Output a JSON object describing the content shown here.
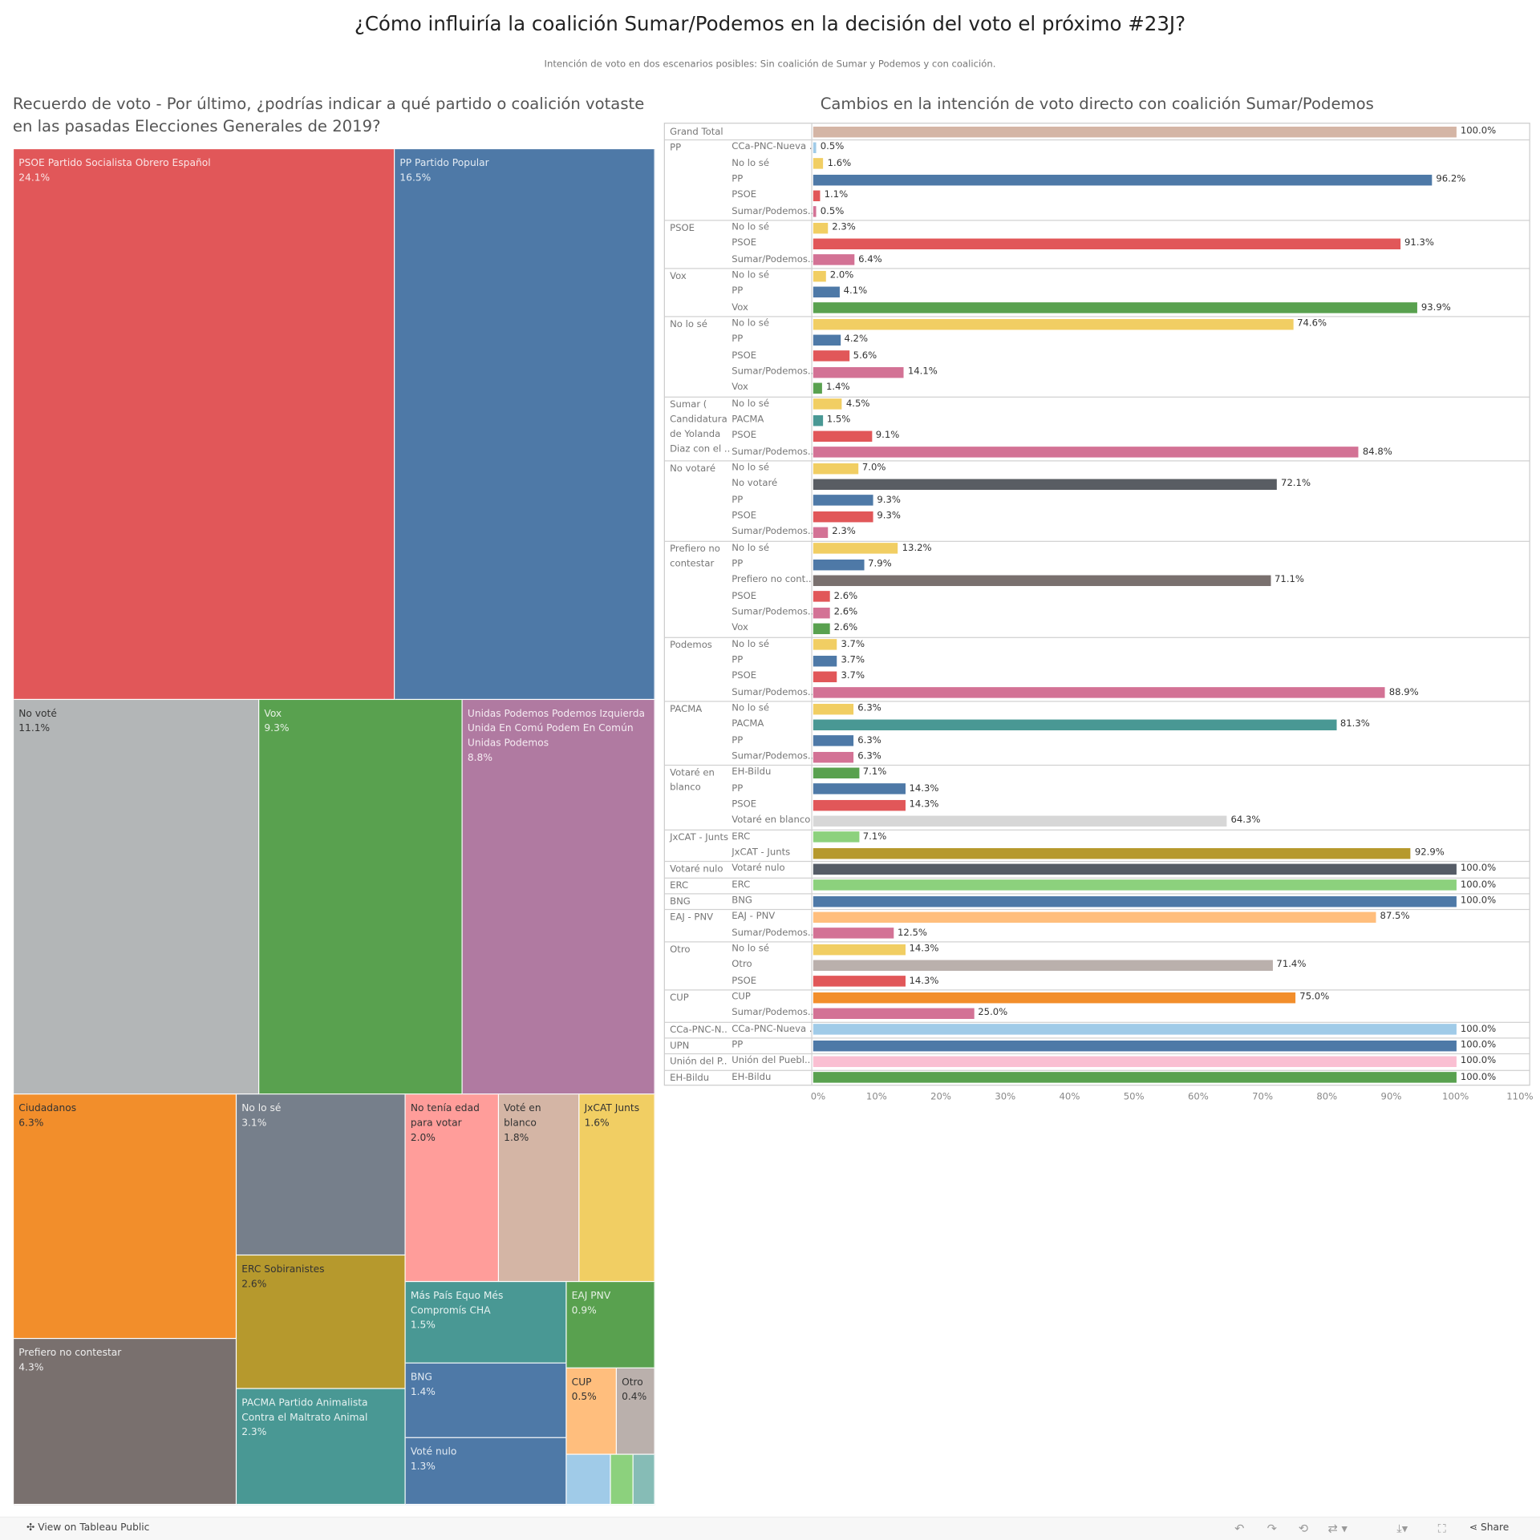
{
  "title": "¿Cómo influiría la coalición Sumar/Podemos en la decisión del voto el próximo #23J?",
  "subtitle": "Intención de voto en dos escenarios posibles: Sin coalición de Sumar y Podemos y con coalición.",
  "left_header": "Recuerdo de voto - Por último, ¿podrías indicar a qué partido o coalición votaste en las pasadas Elecciones Generales de 2019?",
  "right_header": "Cambios en la intención de voto directo con coalición Sumar/Podemos",
  "footer": {
    "view_label": "View on Tableau Public",
    "share_label": "Share",
    "icons": [
      "tableau-logo-icon",
      "undo-icon",
      "redo-icon",
      "revert-icon",
      "refresh-icon",
      "download-icon",
      "fullscreen-icon",
      "share-icon"
    ]
  },
  "chart_data": [
    {
      "type": "treemap",
      "tiles": [
        {
          "label": "PSOE Partido Socialista Obrero Español",
          "value": "24.1%",
          "color": "#e15759",
          "text": "#fbe6e6"
        },
        {
          "label": "PP Partido Popular",
          "value": "16.5%",
          "color": "#4e79a7",
          "text": "#e3ebf3"
        },
        {
          "label": "No voté",
          "value": "11.1%",
          "color": "#b3b6b7",
          "text": "#333333"
        },
        {
          "label": "Vox",
          "value": "9.3%",
          "color": "#59a14f",
          "text": "#e6f1e4"
        },
        {
          "label": "Unidas Podemos Podemos Izquierda Unida En Comú Podem En Común Unidas Podemos",
          "value": "8.8%",
          "color": "#b07aa1",
          "text": "#f5ebf2"
        },
        {
          "label": "Ciudadanos",
          "value": "6.3%",
          "color": "#f28e2b",
          "text": "#333333"
        },
        {
          "label": "Prefiero no contestar",
          "value": "4.3%",
          "color": "#79706e",
          "text": "#eeeeee"
        },
        {
          "label": "No lo sé",
          "value": "3.1%",
          "color": "#767f8b",
          "text": "#eeeeee"
        },
        {
          "label": "ERC  Sobiranistes",
          "value": "2.6%",
          "color": "#b6992d",
          "text": "#333333"
        },
        {
          "label": "PACMA Partido Animalista Contra el Maltrato Animal",
          "value": "2.3%",
          "color": "#499894",
          "text": "#e6f2f1"
        },
        {
          "label": "No tenía edad para votar",
          "value": "2.0%",
          "color": "#ff9d9a",
          "text": "#333333"
        },
        {
          "label": "Voté en blanco",
          "value": "1.8%",
          "color": "#d4b5a5",
          "text": "#333333"
        },
        {
          "label": "JxCAT  Junts",
          "value": "1.6%",
          "color": "#f1ce63",
          "text": "#333333"
        },
        {
          "label": "Más País Equo Més Compromís CHA",
          "value": "1.5%",
          "color": "#499894",
          "text": "#e6f2f1"
        },
        {
          "label": "BNG",
          "value": "1.4%",
          "color": "#4e79a7",
          "text": "#e3ebf3"
        },
        {
          "label": "Voté nulo",
          "value": "1.3%",
          "color": "#4e79a7",
          "text": "#e3ebf3"
        },
        {
          "label": "EAJ  PNV",
          "value": "0.9%",
          "color": "#59a14f",
          "text": "#e6f1e4"
        },
        {
          "label": "CUP",
          "value": "0.5%",
          "color": "#ffbe7d",
          "text": "#333333"
        },
        {
          "label": "Otro",
          "value": "0.4%",
          "color": "#bab0ac",
          "text": "#333333"
        },
        {
          "label": "",
          "value": "",
          "color": "#a0cbe8",
          "text": "#333333"
        },
        {
          "label": "",
          "value": "",
          "color": "#8cd17d",
          "text": "#333333"
        },
        {
          "label": "",
          "value": "",
          "color": "#86bcb6",
          "text": "#333333"
        }
      ]
    },
    {
      "type": "bar",
      "orientation": "horizontal",
      "xlim": [
        0,
        110
      ],
      "ticks": [
        "0%",
        "10%",
        "20%",
        "30%",
        "40%",
        "50%",
        "60%",
        "70%",
        "80%",
        "90%",
        "100%",
        "110%"
      ],
      "colors": {
        "Grand Total": "#d4b5a5",
        "No lo sé": "#f1ce63",
        "PP": "#4e79a7",
        "PSOE": "#e15759",
        "Sumar/Podemos": "#d37295",
        "Vox": "#59a14f",
        "CCa": "#a0cbe8",
        "PACMA": "#499894",
        "No votaré": "#595d63",
        "Prefiero": "#79706e",
        "Blanco": "#d7d7d7",
        "ERC": "#8cd17d",
        "JxCAT": "#b6992d",
        "Nulo": "#555c66",
        "EAJ": "#ffbe7d",
        "Otro": "#bab0ac",
        "CUP": "#f28e2b",
        "Union": "#fabfd2"
      },
      "groups": [
        {
          "group": "Grand Total",
          "rows": [
            {
              "label": "",
              "value": 100.0,
              "text": "100.0%",
              "c": "Grand Total"
            }
          ]
        },
        {
          "group": "PP",
          "rows": [
            {
              "label": "CCa-PNC-Nueva ..",
              "value": 0.5,
              "text": "0.5%",
              "c": "CCa"
            },
            {
              "label": "No lo sé",
              "value": 1.6,
              "text": "1.6%",
              "c": "No lo sé"
            },
            {
              "label": "PP",
              "value": 96.2,
              "text": "96.2%",
              "c": "PP"
            },
            {
              "label": "PSOE",
              "value": 1.1,
              "text": "1.1%",
              "c": "PSOE"
            },
            {
              "label": "Sumar/Podemos..",
              "value": 0.5,
              "text": "0.5%",
              "c": "Sumar/Podemos"
            }
          ]
        },
        {
          "group": "PSOE",
          "rows": [
            {
              "label": "No lo sé",
              "value": 2.3,
              "text": "2.3%",
              "c": "No lo sé"
            },
            {
              "label": "PSOE",
              "value": 91.3,
              "text": "91.3%",
              "c": "PSOE"
            },
            {
              "label": "Sumar/Podemos..",
              "value": 6.4,
              "text": "6.4%",
              "c": "Sumar/Podemos"
            }
          ]
        },
        {
          "group": "Vox",
          "rows": [
            {
              "label": "No lo sé",
              "value": 2.0,
              "text": "2.0%",
              "c": "No lo sé"
            },
            {
              "label": "PP",
              "value": 4.1,
              "text": "4.1%",
              "c": "PP"
            },
            {
              "label": "Vox",
              "value": 93.9,
              "text": "93.9%",
              "c": "Vox"
            }
          ]
        },
        {
          "group": "No lo sé",
          "rows": [
            {
              "label": "No lo sé",
              "value": 74.6,
              "text": "74.6%",
              "c": "No lo sé"
            },
            {
              "label": "PP",
              "value": 4.2,
              "text": "4.2%",
              "c": "PP"
            },
            {
              "label": "PSOE",
              "value": 5.6,
              "text": "5.6%",
              "c": "PSOE"
            },
            {
              "label": "Sumar/Podemos..",
              "value": 14.1,
              "text": "14.1%",
              "c": "Sumar/Podemos"
            },
            {
              "label": "Vox",
              "value": 1.4,
              "text": "1.4%",
              "c": "Vox"
            }
          ]
        },
        {
          "group": "Sumar ( Candidatura de Yolanda Diaz con el ..",
          "rows": [
            {
              "label": "No lo sé",
              "value": 4.5,
              "text": "4.5%",
              "c": "No lo sé"
            },
            {
              "label": "PACMA",
              "value": 1.5,
              "text": "1.5%",
              "c": "PACMA"
            },
            {
              "label": "PSOE",
              "value": 9.1,
              "text": "9.1%",
              "c": "PSOE"
            },
            {
              "label": "Sumar/Podemos..",
              "value": 84.8,
              "text": "84.8%",
              "c": "Sumar/Podemos"
            }
          ]
        },
        {
          "group": "No votaré",
          "rows": [
            {
              "label": "No lo sé",
              "value": 7.0,
              "text": "7.0%",
              "c": "No lo sé"
            },
            {
              "label": "No votaré",
              "value": 72.1,
              "text": "72.1%",
              "c": "No votaré"
            },
            {
              "label": "PP",
              "value": 9.3,
              "text": "9.3%",
              "c": "PP"
            },
            {
              "label": "PSOE",
              "value": 9.3,
              "text": "9.3%",
              "c": "PSOE"
            },
            {
              "label": "Sumar/Podemos..",
              "value": 2.3,
              "text": "2.3%",
              "c": "Sumar/Podemos"
            }
          ]
        },
        {
          "group": "Prefiero no contestar",
          "rows": [
            {
              "label": "No lo sé",
              "value": 13.2,
              "text": "13.2%",
              "c": "No lo sé"
            },
            {
              "label": "PP",
              "value": 7.9,
              "text": "7.9%",
              "c": "PP"
            },
            {
              "label": "Prefiero no cont..",
              "value": 71.1,
              "text": "71.1%",
              "c": "Prefiero"
            },
            {
              "label": "PSOE",
              "value": 2.6,
              "text": "2.6%",
              "c": "PSOE"
            },
            {
              "label": "Sumar/Podemos..",
              "value": 2.6,
              "text": "2.6%",
              "c": "Sumar/Podemos"
            },
            {
              "label": "Vox",
              "value": 2.6,
              "text": "2.6%",
              "c": "Vox"
            }
          ]
        },
        {
          "group": "Podemos",
          "rows": [
            {
              "label": "No lo sé",
              "value": 3.7,
              "text": "3.7%",
              "c": "No lo sé"
            },
            {
              "label": "PP",
              "value": 3.7,
              "text": "3.7%",
              "c": "PP"
            },
            {
              "label": "PSOE",
              "value": 3.7,
              "text": "3.7%",
              "c": "PSOE"
            },
            {
              "label": "Sumar/Podemos..",
              "value": 88.9,
              "text": "88.9%",
              "c": "Sumar/Podemos"
            }
          ]
        },
        {
          "group": "PACMA",
          "rows": [
            {
              "label": "No lo sé",
              "value": 6.3,
              "text": "6.3%",
              "c": "No lo sé"
            },
            {
              "label": "PACMA",
              "value": 81.3,
              "text": "81.3%",
              "c": "PACMA"
            },
            {
              "label": "PP",
              "value": 6.3,
              "text": "6.3%",
              "c": "PP"
            },
            {
              "label": "Sumar/Podemos..",
              "value": 6.3,
              "text": "6.3%",
              "c": "Sumar/Podemos"
            }
          ]
        },
        {
          "group": "Votaré en blanco",
          "rows": [
            {
              "label": "EH-Bildu",
              "value": 7.1,
              "text": "7.1%",
              "c": "Vox"
            },
            {
              "label": "PP",
              "value": 14.3,
              "text": "14.3%",
              "c": "PP"
            },
            {
              "label": "PSOE",
              "value": 14.3,
              "text": "14.3%",
              "c": "PSOE"
            },
            {
              "label": "Votaré en blanco",
              "value": 64.3,
              "text": "64.3%",
              "c": "Blanco"
            }
          ]
        },
        {
          "group": "JxCAT - Junts",
          "rows": [
            {
              "label": "ERC",
              "value": 7.1,
              "text": "7.1%",
              "c": "ERC"
            },
            {
              "label": "JxCAT - Junts",
              "value": 92.9,
              "text": "92.9%",
              "c": "JxCAT"
            }
          ]
        },
        {
          "group": "Votaré nulo",
          "rows": [
            {
              "label": "Votaré nulo",
              "value": 100.0,
              "text": "100.0%",
              "c": "Nulo"
            }
          ]
        },
        {
          "group": "ERC",
          "rows": [
            {
              "label": "ERC",
              "value": 100.0,
              "text": "100.0%",
              "c": "ERC"
            }
          ]
        },
        {
          "group": "BNG",
          "rows": [
            {
              "label": "BNG",
              "value": 100.0,
              "text": "100.0%",
              "c": "PP"
            }
          ]
        },
        {
          "group": "EAJ - PNV",
          "rows": [
            {
              "label": "EAJ - PNV",
              "value": 87.5,
              "text": "87.5%",
              "c": "EAJ"
            },
            {
              "label": "Sumar/Podemos..",
              "value": 12.5,
              "text": "12.5%",
              "c": "Sumar/Podemos"
            }
          ]
        },
        {
          "group": "Otro",
          "rows": [
            {
              "label": "No lo sé",
              "value": 14.3,
              "text": "14.3%",
              "c": "No lo sé"
            },
            {
              "label": "Otro",
              "value": 71.4,
              "text": "71.4%",
              "c": "Otro"
            },
            {
              "label": "PSOE",
              "value": 14.3,
              "text": "14.3%",
              "c": "PSOE"
            }
          ]
        },
        {
          "group": "CUP",
          "rows": [
            {
              "label": "CUP",
              "value": 75.0,
              "text": "75.0%",
              "c": "CUP"
            },
            {
              "label": "Sumar/Podemos..",
              "value": 25.0,
              "text": "25.0%",
              "c": "Sumar/Podemos"
            }
          ]
        },
        {
          "group": "CCa-PNC-N..",
          "rows": [
            {
              "label": "CCa-PNC-Nueva ..",
              "value": 100.0,
              "text": "100.0%",
              "c": "CCa"
            }
          ]
        },
        {
          "group": "UPN",
          "rows": [
            {
              "label": "PP",
              "value": 100.0,
              "text": "100.0%",
              "c": "PP"
            }
          ]
        },
        {
          "group": "Unión del P..",
          "rows": [
            {
              "label": "Unión del Puebl..",
              "value": 100.0,
              "text": "100.0%",
              "c": "Union"
            }
          ]
        },
        {
          "group": "EH-Bildu",
          "rows": [
            {
              "label": "EH-Bildu",
              "value": 100.0,
              "text": "100.0%",
              "c": "Vox"
            }
          ]
        }
      ]
    }
  ]
}
